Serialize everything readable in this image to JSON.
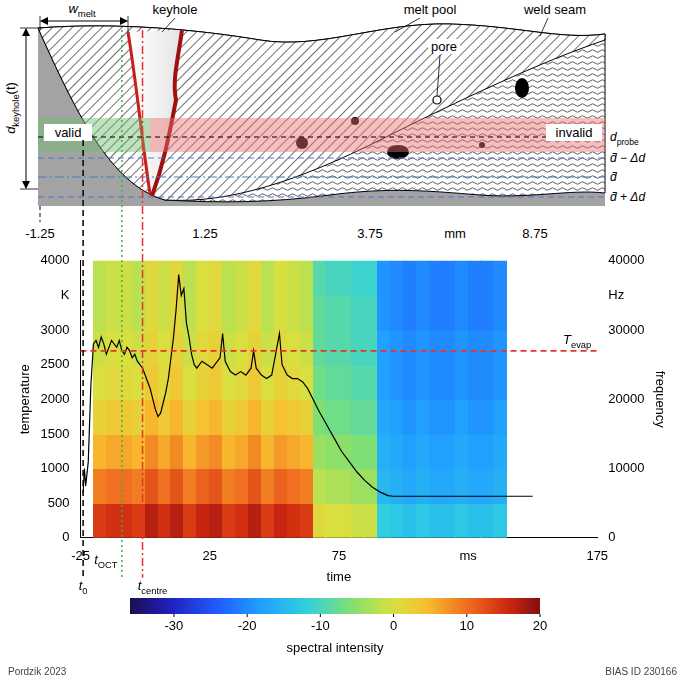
{
  "diagram": {
    "labels": {
      "w_melt": {
        "main": "w",
        "sub": "melt"
      },
      "keyhole": "keyhole",
      "melt_pool": "melt pool",
      "pore": "pore",
      "weld_seam": "weld seam",
      "d_keyhole": {
        "main": "d",
        "sub": "keyhole",
        "suffix": "(t)"
      },
      "valid": "valid",
      "invalid": "invalid",
      "d_probe": {
        "main": "d",
        "sub": "probe"
      },
      "d_minus": "d̄ − Δd",
      "d_bar": "d̄",
      "d_plus": "d̄ + Δd"
    },
    "scale_labels": [
      "-1.25",
      "1.25",
      "3.75",
      "mm",
      "8.75"
    ]
  },
  "chart_data": {
    "type": "heatmap",
    "x_label": "time",
    "y_label": "temperature",
    "y2_label": "frequency",
    "xlim": [
      -25,
      175
    ],
    "xticks": [
      -25,
      25,
      75,
      {
        "value": 125,
        "label": "ms"
      },
      175
    ],
    "ylim": [
      0,
      4000
    ],
    "yticks": [
      0,
      500,
      1000,
      1500,
      2000,
      2500,
      3000,
      {
        "value": 3500,
        "label": "K"
      },
      4000
    ],
    "y2lim": [
      0,
      40000
    ],
    "y2ticks": [
      0,
      10000,
      20000,
      30000,
      {
        "value": 35000,
        "label": "Hz"
      },
      40000
    ],
    "grid": false,
    "series": [
      {
        "type": "line",
        "color": "#000000",
        "x": [
          -24,
          -23.5,
          -23,
          -22,
          -21,
          -20,
          -19,
          -18,
          -17,
          -16,
          -15,
          -14,
          -13,
          -12,
          -11,
          -10,
          -9,
          -8,
          -7,
          -6,
          -5,
          -4,
          -3,
          -2,
          -1,
          0,
          1,
          2,
          3,
          4,
          5,
          6,
          7,
          8,
          9,
          10,
          11,
          12,
          13,
          14,
          15,
          16,
          17,
          18,
          19,
          20,
          22,
          24,
          26,
          28,
          29,
          30,
          31,
          33,
          35,
          37,
          39,
          41,
          42,
          43,
          45,
          47,
          49,
          51,
          52,
          53,
          55,
          57,
          59,
          61,
          63,
          65,
          67,
          70,
          73,
          76,
          79,
          82,
          85,
          88,
          91,
          94,
          96,
          150
        ],
        "values": [
          650,
          1000,
          750,
          1100,
          2200,
          2800,
          2850,
          2750,
          2900,
          2800,
          2650,
          2750,
          2850,
          2800,
          2750,
          2850,
          2700,
          2650,
          2750,
          2700,
          2600,
          2650,
          2550,
          2500,
          2450,
          2350,
          2250,
          2150,
          2000,
          1850,
          1750,
          1800,
          1950,
          2100,
          2300,
          2600,
          2900,
          3300,
          3800,
          3500,
          3600,
          3100,
          2900,
          2650,
          2500,
          2450,
          2550,
          2500,
          2450,
          2550,
          2600,
          2950,
          2550,
          2400,
          2350,
          2400,
          2350,
          2450,
          2700,
          2450,
          2350,
          2300,
          2350,
          2750,
          2950,
          2500,
          2350,
          2300,
          2300,
          2250,
          2150,
          2000,
          1850,
          1650,
          1450,
          1250,
          1100,
          950,
          830,
          730,
          660,
          610,
          600,
          600
        ]
      }
    ],
    "heatmap": {
      "axis": "y2",
      "x_edges": [
        -20,
        -15,
        -10,
        -5,
        0,
        5,
        10,
        15,
        20,
        25,
        30,
        35,
        40,
        45,
        50,
        55,
        60,
        65,
        70,
        75,
        80,
        85,
        90,
        95,
        100,
        105,
        110,
        115,
        120,
        125,
        130,
        135,
        140
      ],
      "y_edges": [
        0,
        5000,
        10000,
        15000,
        20000,
        25000,
        30000,
        35000,
        40000
      ],
      "cells": [
        [
          14,
          15,
          15,
          14,
          17,
          15,
          17,
          14,
          16,
          17,
          14,
          15,
          17,
          14,
          16,
          15,
          14,
          1,
          0,
          0,
          -1,
          -1,
          -12,
          -13,
          -14,
          -13,
          -14,
          -14,
          -13,
          -14,
          -14,
          -13
        ],
        [
          9,
          10,
          10,
          9,
          12,
          10,
          12,
          9,
          11,
          12,
          9,
          10,
          12,
          9,
          11,
          10,
          9,
          -2,
          -3,
          -3,
          -4,
          -4,
          -15,
          -16,
          -17,
          -16,
          -17,
          -17,
          -16,
          -17,
          -17,
          -16
        ],
        [
          5,
          6,
          6,
          5,
          8,
          6,
          8,
          5,
          7,
          8,
          5,
          6,
          8,
          5,
          7,
          6,
          5,
          -4,
          -5,
          -5,
          -6,
          -6,
          -16,
          -17,
          -18,
          -17,
          -18,
          -18,
          -17,
          -18,
          -18,
          -17
        ],
        [
          2,
          3,
          3,
          2,
          5,
          3,
          5,
          2,
          4,
          5,
          2,
          3,
          5,
          2,
          4,
          3,
          2,
          -6,
          -7,
          -7,
          -8,
          -8,
          -17,
          -18,
          -19,
          -18,
          -19,
          -19,
          -18,
          -19,
          -19,
          -18
        ],
        [
          0,
          1,
          1,
          0,
          3,
          1,
          3,
          0,
          2,
          3,
          0,
          1,
          3,
          0,
          2,
          1,
          0,
          -7,
          -8,
          -8,
          -9,
          -9,
          -18,
          -19,
          -20,
          -19,
          -20,
          -20,
          -19,
          -20,
          -20,
          -19
        ],
        [
          -1,
          0,
          0,
          -1,
          2,
          0,
          2,
          -1,
          1,
          2,
          -1,
          0,
          2,
          -1,
          1,
          0,
          -1,
          -8,
          -9,
          -9,
          -10,
          -10,
          -18,
          -19,
          -20,
          -19,
          -20,
          -20,
          -19,
          -20,
          -20,
          -19
        ],
        [
          -2,
          -1,
          -1,
          -2,
          1,
          -1,
          1,
          -2,
          0,
          1,
          -2,
          -1,
          1,
          -2,
          0,
          -1,
          -2,
          -8,
          -9,
          -9,
          -10,
          -10,
          -19,
          -20,
          -21,
          -20,
          -21,
          -21,
          -20,
          -21,
          -21,
          -20
        ],
        [
          -2,
          -1,
          -1,
          -2,
          1,
          -1,
          1,
          -2,
          0,
          1,
          -2,
          -1,
          1,
          -2,
          0,
          -1,
          -2,
          -9,
          -10,
          -10,
          -11,
          -11,
          -19,
          -20,
          -21,
          -20,
          -21,
          -21,
          -20,
          -21,
          -21,
          -20
        ]
      ],
      "clim": [
        -36,
        20
      ],
      "cticks": [
        -30,
        -20,
        -10,
        0,
        10,
        20
      ],
      "colorbar_label": "spectral intensity"
    },
    "hlines": [
      {
        "y": 2700,
        "label": "T",
        "sub": "evap",
        "color": "#e8322d",
        "line_style": "dashed"
      }
    ],
    "vlines": [
      {
        "x": -24,
        "label": "t",
        "sub": "0",
        "color": "#000000",
        "line_style": "dashed"
      },
      {
        "x": -9,
        "label": "t",
        "sub": "OCT",
        "color": "#3cb043",
        "line_style": "dotted"
      },
      {
        "x": -1,
        "label": "t",
        "sub": "centre",
        "color": "#e8322d",
        "line_style": "dashdot"
      }
    ]
  },
  "footer": {
    "left": "Pordzik 2023",
    "right": "BIAS ID 230166"
  }
}
